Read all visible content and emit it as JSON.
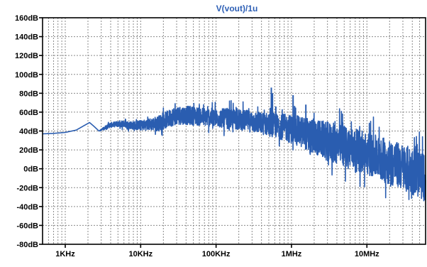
{
  "window": {
    "title": "V(vout)/1u"
  },
  "colors": {
    "background": "#ffffff",
    "trace": "#2a5db0",
    "title": "#2d5fb5",
    "grid": "#8a8a8a",
    "axis_text": "#000000",
    "frame": "#000000"
  },
  "chart_data": {
    "type": "line",
    "title": "V(vout)/1u",
    "x_scale": "log",
    "x_unit": "Hz",
    "xlim": [
      500,
      60000000
    ],
    "ylim": [
      -80,
      160
    ],
    "y_unit": "dB",
    "grid": true,
    "x_ticks": [
      {
        "value": 1000,
        "label": "1KHz"
      },
      {
        "value": 10000,
        "label": "10KHz"
      },
      {
        "value": 100000,
        "label": "100KHz"
      },
      {
        "value": 1000000,
        "label": "1MHz"
      },
      {
        "value": 10000000,
        "label": "10MHz"
      }
    ],
    "y_ticks": [
      {
        "value": 160,
        "label": "160dB"
      },
      {
        "value": 140,
        "label": "140dB"
      },
      {
        "value": 120,
        "label": "120dB"
      },
      {
        "value": 100,
        "label": "100dB"
      },
      {
        "value": 80,
        "label": "80dB"
      },
      {
        "value": 60,
        "label": "60dB"
      },
      {
        "value": 40,
        "label": "40dB"
      },
      {
        "value": 20,
        "label": "20dB"
      },
      {
        "value": 0,
        "label": "0dB"
      },
      {
        "value": -20,
        "label": "-20dB"
      },
      {
        "value": -40,
        "label": "-40dB"
      },
      {
        "value": -60,
        "label": "-60dB"
      },
      {
        "value": -80,
        "label": "-80dB"
      }
    ],
    "series": [
      {
        "x": [
          500,
          700,
          1000,
          1400,
          1800,
          2100,
          2400,
          2800,
          3300,
          3800,
          4500,
          5500,
          6500,
          8000,
          10000,
          13000,
          17000,
          22000,
          28000,
          35000,
          50000,
          70000,
          100000,
          150000,
          200000,
          300000,
          400000,
          500000,
          700000,
          1000000,
          1500000,
          2000000,
          3000000,
          5000000,
          7000000,
          10000000,
          15000000,
          20000000,
          30000000,
          45000000,
          60000000
        ],
        "y": [
          37,
          37.5,
          38.5,
          41,
          46,
          49,
          45,
          40,
          43,
          46,
          47,
          48,
          47,
          46,
          46,
          47,
          48,
          52,
          56,
          57,
          56,
          55,
          54,
          53,
          52,
          50,
          48,
          47,
          45,
          42,
          38,
          34,
          29,
          24,
          20,
          16,
          11,
          7,
          2,
          -4,
          -10
        ],
        "band": [
          0,
          0,
          0,
          0,
          0,
          0,
          0,
          0,
          2,
          3,
          3,
          4,
          4,
          5,
          6,
          7,
          9,
          10,
          11,
          11,
          11,
          11,
          11,
          12,
          12,
          13,
          13,
          14,
          15,
          17,
          19,
          21,
          23,
          25,
          25,
          25,
          26,
          27,
          27,
          28,
          28
        ]
      }
    ],
    "spikes": [
      {
        "x": 540000,
        "y": 86
      },
      {
        "x": 560000,
        "y": 80
      },
      {
        "x": 1050000,
        "y": 78
      },
      {
        "x": 1550000,
        "y": 68
      },
      {
        "x": 1100000,
        "y": 62
      },
      {
        "x": 620000,
        "y": 66
      }
    ]
  }
}
